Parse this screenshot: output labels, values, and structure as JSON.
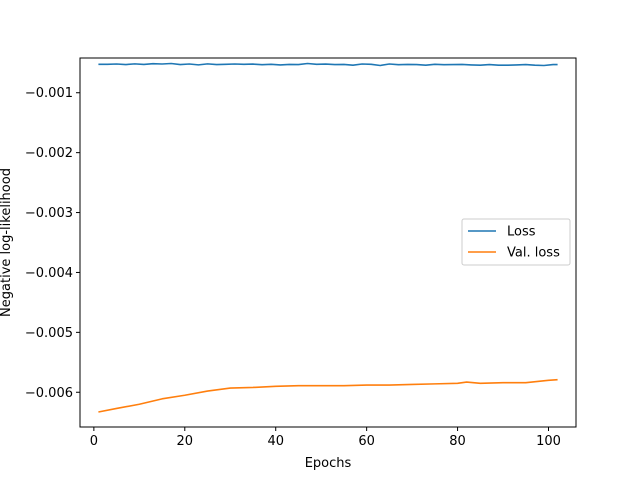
{
  "chart_data": {
    "type": "line",
    "title": "",
    "xlabel": "Epochs",
    "ylabel": "Negative log-likelihood",
    "xlim": [
      -3.05,
      106.05
    ],
    "ylim": [
      -0.00658,
      -0.00042
    ],
    "xticks": [
      0,
      20,
      40,
      60,
      80,
      100
    ],
    "xtick_labels": [
      "0",
      "20",
      "40",
      "60",
      "80",
      "100"
    ],
    "yticks": [
      -0.006,
      -0.005,
      -0.004,
      -0.003,
      -0.002,
      -0.001
    ],
    "ytick_labels": [
      "−0.006",
      "−0.005",
      "−0.004",
      "−0.003",
      "−0.002",
      "−0.001"
    ],
    "grid": false,
    "legend_position": "center-right",
    "series": [
      {
        "name": "Loss",
        "color": "#1f77b4",
        "x": [
          1,
          3,
          5,
          7,
          9,
          11,
          13,
          15,
          17,
          19,
          21,
          23,
          25,
          27,
          29,
          31,
          33,
          35,
          37,
          39,
          41,
          43,
          45,
          47,
          49,
          51,
          53,
          55,
          57,
          59,
          61,
          63,
          65,
          67,
          69,
          71,
          73,
          75,
          77,
          79,
          81,
          83,
          85,
          87,
          89,
          91,
          93,
          95,
          97,
          99,
          101,
          102
        ],
        "y": [
          -0.000525,
          -0.000525,
          -0.00052,
          -0.00053,
          -0.000518,
          -0.000528,
          -0.000515,
          -0.00052,
          -0.000512,
          -0.00053,
          -0.00052,
          -0.000535,
          -0.000518,
          -0.00053,
          -0.000525,
          -0.00052,
          -0.000525,
          -0.000522,
          -0.000532,
          -0.000525,
          -0.000535,
          -0.000528,
          -0.00053,
          -0.000512,
          -0.000525,
          -0.000522,
          -0.00053,
          -0.000528,
          -0.00054,
          -0.00052,
          -0.000525,
          -0.000545,
          -0.00052,
          -0.000532,
          -0.000528,
          -0.00053,
          -0.00054,
          -0.000525,
          -0.000532,
          -0.00053,
          -0.000528,
          -0.000535,
          -0.00054,
          -0.00053,
          -0.00054,
          -0.00054,
          -0.000535,
          -0.00053,
          -0.00054,
          -0.000545,
          -0.00053,
          -0.00053
        ]
      },
      {
        "name": "Val. loss",
        "color": "#ff7f0e",
        "x": [
          1,
          5,
          10,
          15,
          20,
          25,
          30,
          35,
          40,
          45,
          50,
          55,
          60,
          65,
          70,
          75,
          80,
          82,
          85,
          90,
          95,
          100,
          102
        ],
        "y": [
          -0.00633,
          -0.00627,
          -0.0062,
          -0.00611,
          -0.00605,
          -0.00598,
          -0.00593,
          -0.00592,
          -0.0059,
          -0.00589,
          -0.00589,
          -0.00589,
          -0.00588,
          -0.00588,
          -0.00587,
          -0.00586,
          -0.00585,
          -0.00583,
          -0.00585,
          -0.00584,
          -0.00584,
          -0.0058,
          -0.00579
        ]
      }
    ]
  }
}
